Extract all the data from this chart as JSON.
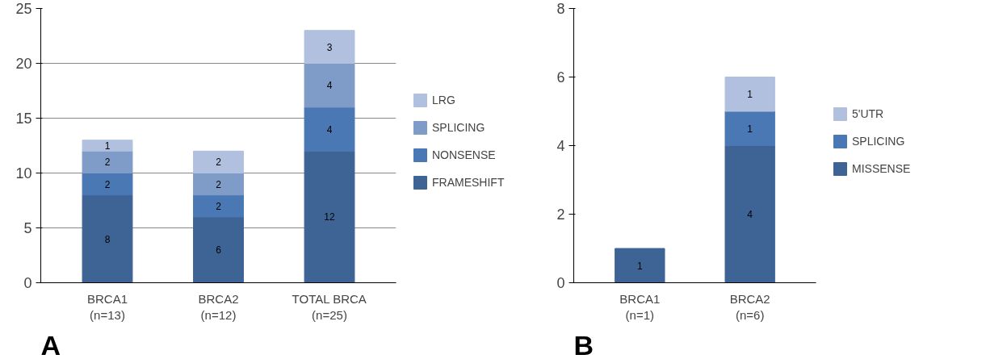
{
  "chart_data": [
    {
      "type": "bar",
      "stacked": true,
      "categories": [
        "BRCA1\n(n=13)",
        "BRCA2\n(n=12)",
        "TOTAL BRCA\n(n=25)"
      ],
      "ylim": [
        0,
        25
      ],
      "yticks": [
        0,
        5,
        10,
        15,
        20,
        25
      ],
      "grid": "y",
      "legend": "right",
      "data_labels": true,
      "annotations": [
        "A"
      ],
      "series": [
        {
          "name": "FRAMESHIFT",
          "color": "#3e6496",
          "values": [
            8,
            6,
            12
          ]
        },
        {
          "name": "NONSENSE",
          "color": "#4a78b4",
          "values": [
            2,
            2,
            4
          ]
        },
        {
          "name": "SPLICING",
          "color": "#7f9cc8",
          "values": [
            2,
            2,
            4
          ]
        },
        {
          "name": "LRG",
          "color": "#b0c0de",
          "values": [
            1,
            2,
            3
          ]
        }
      ]
    },
    {
      "type": "bar",
      "stacked": true,
      "categories": [
        "BRCA1\n(n=1)",
        "BRCA2\n(n=6)"
      ],
      "ylim": [
        0,
        8
      ],
      "yticks": [
        0,
        2,
        4,
        6,
        8
      ],
      "grid": false,
      "legend": "right",
      "data_labels": true,
      "annotations": [
        "B"
      ],
      "series": [
        {
          "name": "MISSENSE",
          "color": "#3e6496",
          "values": [
            1,
            4
          ]
        },
        {
          "name": "SPLICING",
          "color": "#4a78b4",
          "values": [
            null,
            1
          ]
        },
        {
          "name": "5'UTR",
          "color": "#b0c0de",
          "values": [
            null,
            1
          ]
        }
      ]
    }
  ]
}
